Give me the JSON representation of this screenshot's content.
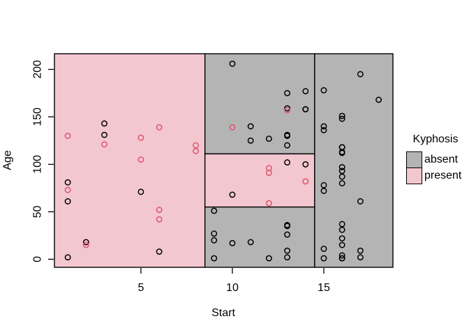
{
  "chart_data": {
    "type": "scatter",
    "title": "",
    "xlabel": "Start",
    "ylabel": "Age",
    "xlim": [
      0.27,
      18.78
    ],
    "ylim": [
      -8.5,
      216.5
    ],
    "x_ticks": [
      5,
      10,
      15
    ],
    "y_ticks": [
      0,
      50,
      100,
      150,
      200
    ],
    "grid": false,
    "point_shape": "open-circle",
    "legend": {
      "title": "Kyphosis",
      "position": "right",
      "entries": [
        {
          "label": "absent",
          "fill": "#B4B4B4",
          "border": "#000000"
        },
        {
          "label": "present",
          "fill": "#F3C7D0",
          "border": "#000000"
        }
      ]
    },
    "classes": {
      "absent": {
        "point_color": "#000000",
        "region_fill": "#B4B4B4"
      },
      "present": {
        "point_color": "#DF536B",
        "region_fill": "#F3C7D0"
      }
    },
    "regions": [
      {
        "class": "present",
        "x0": 0.27,
        "x1": 8.5,
        "y0": -8.5,
        "y1": 216.5
      },
      {
        "class": "absent",
        "x0": 8.5,
        "x1": 14.5,
        "y0": 111,
        "y1": 216.5
      },
      {
        "class": "present",
        "x0": 8.5,
        "x1": 14.5,
        "y0": 55,
        "y1": 111
      },
      {
        "class": "absent",
        "x0": 8.5,
        "x1": 14.5,
        "y0": -8.5,
        "y1": 55
      },
      {
        "class": "absent",
        "x0": 14.5,
        "x1": 18.78,
        "y0": -8.5,
        "y1": 216.5
      }
    ],
    "points_format": [
      "start",
      "age",
      "kyphosis"
    ],
    "points": [
      [
        5,
        71,
        "absent"
      ],
      [
        14,
        158,
        "absent"
      ],
      [
        5,
        128,
        "present"
      ],
      [
        1,
        2,
        "absent"
      ],
      [
        15,
        1,
        "absent"
      ],
      [
        16,
        1,
        "absent"
      ],
      [
        17,
        61,
        "absent"
      ],
      [
        16,
        37,
        "absent"
      ],
      [
        16,
        113,
        "absent"
      ],
      [
        12,
        59,
        "present"
      ],
      [
        14,
        82,
        "present"
      ],
      [
        16,
        148,
        "absent"
      ],
      [
        2,
        18,
        "absent"
      ],
      [
        12,
        1,
        "absent"
      ],
      [
        18,
        168,
        "absent"
      ],
      [
        16,
        1,
        "absent"
      ],
      [
        15,
        78,
        "absent"
      ],
      [
        13,
        175,
        "absent"
      ],
      [
        16,
        80,
        "absent"
      ],
      [
        9,
        27,
        "absent"
      ],
      [
        16,
        22,
        "absent"
      ],
      [
        5,
        105,
        "present"
      ],
      [
        12,
        96,
        "present"
      ],
      [
        3,
        131,
        "absent"
      ],
      [
        2,
        15,
        "present"
      ],
      [
        13,
        9,
        "absent"
      ],
      [
        6,
        8,
        "absent"
      ],
      [
        14,
        100,
        "absent"
      ],
      [
        16,
        4,
        "absent"
      ],
      [
        16,
        151,
        "absent"
      ],
      [
        16,
        31,
        "absent"
      ],
      [
        11,
        125,
        "absent"
      ],
      [
        13,
        130,
        "absent"
      ],
      [
        16,
        112,
        "absent"
      ],
      [
        11,
        140,
        "absent"
      ],
      [
        16,
        93,
        "absent"
      ],
      [
        9,
        1,
        "absent"
      ],
      [
        6,
        52,
        "present"
      ],
      [
        9,
        20,
        "absent"
      ],
      [
        12,
        91,
        "present"
      ],
      [
        1,
        73,
        "present"
      ],
      [
        13,
        35,
        "absent"
      ],
      [
        3,
        143,
        "absent"
      ],
      [
        1,
        61,
        "absent"
      ],
      [
        16,
        97,
        "absent"
      ],
      [
        10,
        139,
        "present"
      ],
      [
        15,
        136,
        "absent"
      ],
      [
        13,
        131,
        "absent"
      ],
      [
        3,
        121,
        "present"
      ],
      [
        14,
        177,
        "absent"
      ],
      [
        10,
        68,
        "absent"
      ],
      [
        17,
        9,
        "absent"
      ],
      [
        6,
        139,
        "present"
      ],
      [
        17,
        2,
        "absent"
      ],
      [
        15,
        140,
        "absent"
      ],
      [
        15,
        72,
        "absent"
      ],
      [
        13,
        2,
        "absent"
      ],
      [
        8,
        120,
        "present"
      ],
      [
        9,
        51,
        "absent"
      ],
      [
        13,
        102,
        "absent"
      ],
      [
        1,
        130,
        "present"
      ],
      [
        8,
        114,
        "present"
      ],
      [
        1,
        81,
        "absent"
      ],
      [
        16,
        118,
        "absent"
      ],
      [
        16,
        118,
        "absent"
      ],
      [
        10,
        17,
        "absent"
      ],
      [
        17,
        195,
        "absent"
      ],
      [
        13,
        159,
        "absent"
      ],
      [
        11,
        18,
        "absent"
      ],
      [
        16,
        15,
        "absent"
      ],
      [
        14,
        158,
        "absent"
      ],
      [
        12,
        127,
        "absent"
      ],
      [
        16,
        87,
        "absent"
      ],
      [
        10,
        206,
        "absent"
      ],
      [
        15,
        11,
        "absent"
      ],
      [
        15,
        178,
        "absent"
      ],
      [
        13,
        157,
        "present"
      ],
      [
        13,
        26,
        "absent"
      ],
      [
        13,
        120,
        "absent"
      ],
      [
        6,
        42,
        "present"
      ],
      [
        13,
        36,
        "absent"
      ]
    ]
  }
}
